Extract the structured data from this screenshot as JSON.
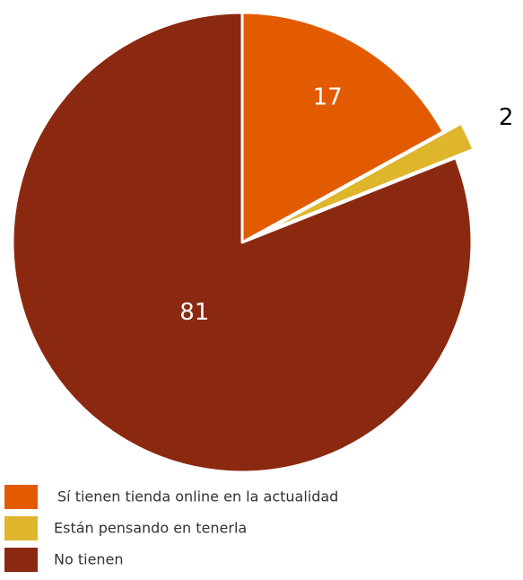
{
  "chart_data": {
    "type": "pie",
    "categories": [
      "Sí tienen tienda online en la actualidad",
      "Están pensando en tenerla",
      "No tienen"
    ],
    "values": [
      17,
      2,
      81
    ],
    "colors": [
      "#e35b00",
      "#dfb52c",
      "#8b2910"
    ],
    "legend": "bottom-left"
  }
}
